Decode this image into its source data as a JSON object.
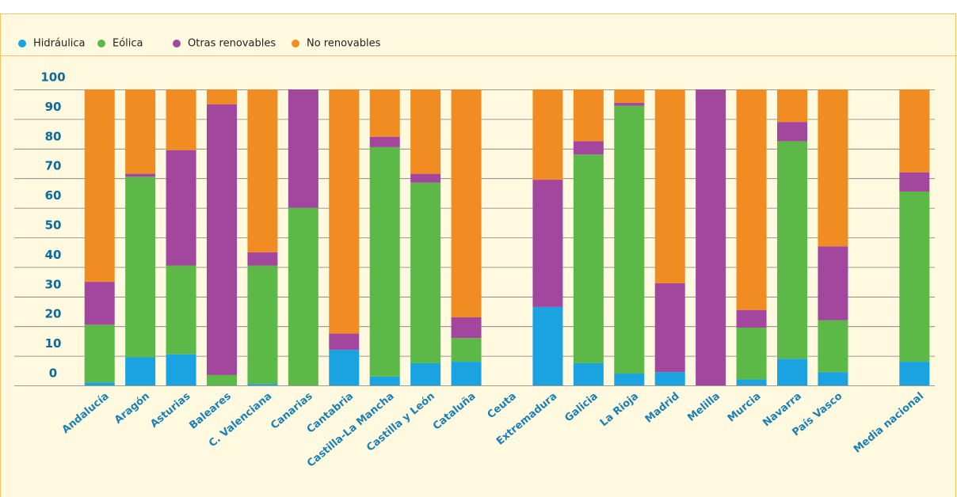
{
  "chart_data": {
    "type": "stacked-bar",
    "categories": [
      "Andalucía",
      "Aragón",
      "Asturias",
      "Baleares",
      "C. Valenciana",
      "Canarias",
      "Cantabria",
      "Castilla-La Mancha",
      "Castilla y León",
      "Cataluña",
      "Ceuta",
      "Extremadura",
      "Galicia",
      "La Rioja",
      "Madrid",
      "Melilla",
      "Murcia",
      "Navarra",
      "País Vasco",
      null,
      "Media nacional"
    ],
    "series": [
      {
        "name": "Hidráulica",
        "color": "#1aa3e0",
        "values": [
          1,
          9.5,
          10.5,
          0,
          0.5,
          0,
          12,
          3,
          7.5,
          8,
          0,
          26.5,
          7.5,
          4,
          4.5,
          0,
          2,
          9,
          4.5,
          null,
          8
        ]
      },
      {
        "name": "Eólica",
        "color": "#5cb947",
        "values": [
          19.5,
          61,
          30,
          3.5,
          40,
          60,
          0,
          77.5,
          61,
          8,
          0,
          0,
          70.5,
          90.5,
          0,
          0,
          17.5,
          73.5,
          17.5,
          null,
          57.5
        ]
      },
      {
        "name": "Otras renovables",
        "color": "#a3479e",
        "values": [
          14.5,
          1,
          39,
          91.5,
          4.5,
          40,
          5.5,
          3.5,
          3,
          7,
          0,
          43,
          4.5,
          1,
          30,
          100,
          6,
          6.5,
          25,
          null,
          6.5
        ]
      },
      {
        "name": "No renovables",
        "color": "#f08c22",
        "values": [
          65,
          28.5,
          20.5,
          5,
          55,
          0,
          82.5,
          16,
          28.5,
          77,
          0,
          30.5,
          17.5,
          4.5,
          65.5,
          0,
          74.5,
          11,
          53,
          null,
          28
        ]
      }
    ],
    "ylim": [
      0,
      100
    ],
    "yticks": [
      0,
      10,
      20,
      30,
      40,
      50,
      60,
      70,
      80,
      90,
      100
    ],
    "grid": true,
    "legend": "top-left"
  }
}
